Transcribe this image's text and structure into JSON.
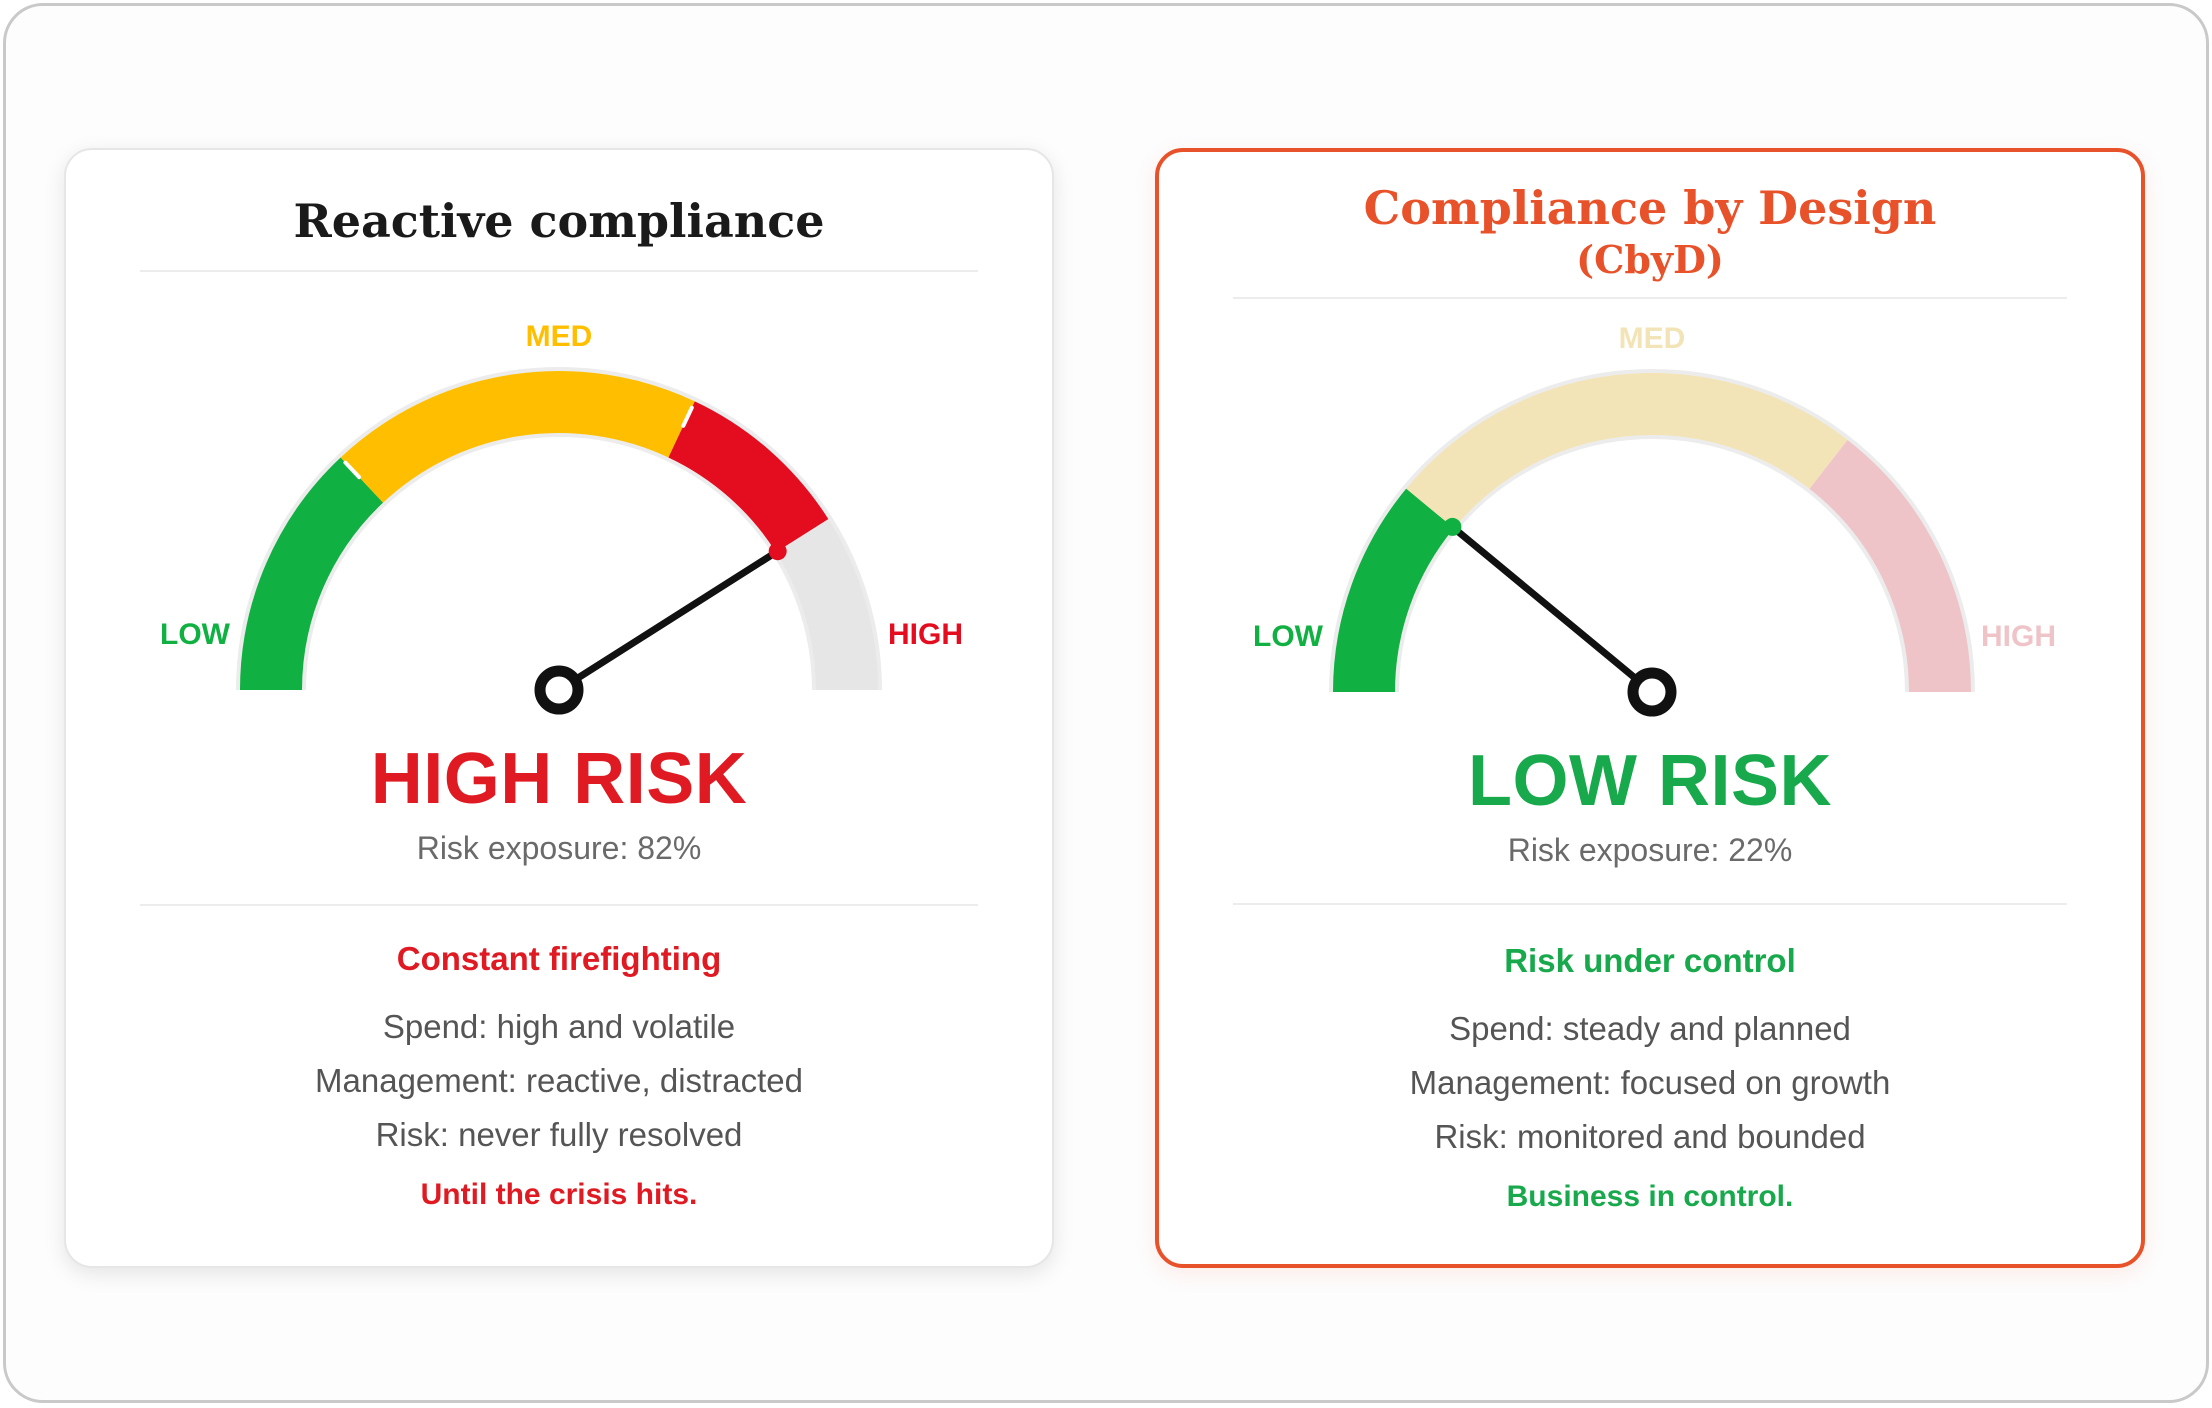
{
  "colors": {
    "green": "#11b042",
    "yellow": "#ffbf00",
    "red": "#e30d1f",
    "grey": "#e6e6e6",
    "faded_yellow": "#f3e4b7",
    "faded_red": "#efc4c8",
    "accent": "#e8522a",
    "needle": "#111111"
  },
  "panels": [
    {
      "title": "Reactive compliance",
      "gauge": {
        "low_label": "LOW",
        "med_label": "MED",
        "high_label": "HIGH",
        "value_percent": 82,
        "filled_percent": 82,
        "zones": [
          {
            "from": 0,
            "to": 26,
            "color": "#11b042"
          },
          {
            "from": 26,
            "to": 64,
            "color": "#ffbf00"
          },
          {
            "from": 64,
            "to": 82,
            "color": "#e30d1f"
          },
          {
            "from": 82,
            "to": 100,
            "color": "#e6e6e6"
          }
        ],
        "ticks": [
          26,
          64
        ],
        "tip_color": "#e30d1f",
        "high_label_faded": false,
        "med_label_faded": false
      },
      "status": "HIGH RISK",
      "exposure": "Risk exposure: 82%",
      "tagline": "Constant firefighting",
      "details": [
        "Spend: high and volatile",
        "Management: reactive, distracted",
        "Risk: never fully resolved"
      ],
      "closing": "Until the crisis hits."
    },
    {
      "title": "Compliance by Design",
      "subtitle": "(CbyD)",
      "gauge": {
        "low_label": "LOW",
        "med_label": "MED",
        "high_label": "HIGH",
        "value_percent": 22,
        "filled_percent": 22,
        "zones": [
          {
            "from": 0,
            "to": 22,
            "color": "#11b042"
          },
          {
            "from": 22,
            "to": 71,
            "color": "#f3e4b7"
          },
          {
            "from": 71,
            "to": 100,
            "color": "#efc4c8"
          }
        ],
        "ticks": [],
        "tip_color": "#11b042",
        "high_label_faded": true,
        "med_label_faded": true
      },
      "status": "LOW RISK",
      "exposure": "Risk exposure: 22%",
      "tagline": "Risk under control",
      "details": [
        "Spend: steady and planned",
        "Management: focused on growth",
        "Risk: monitored and bounded"
      ],
      "closing": "Business in control."
    }
  ]
}
